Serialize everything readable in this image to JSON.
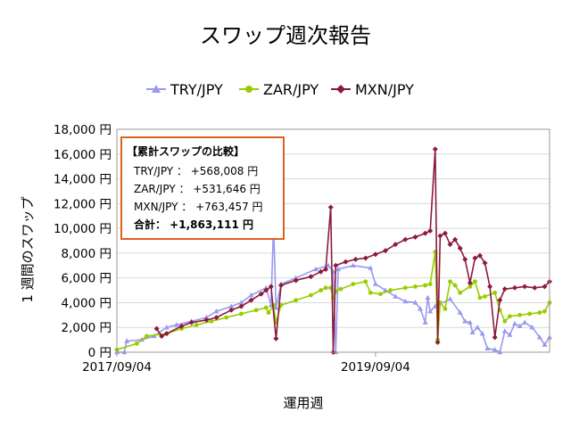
{
  "chart_data": {
    "type": "line",
    "title": "スワップ週次報告",
    "xlabel": "運用週",
    "ylabel": "1 週間のスワップ",
    "ylim": [
      0,
      18000
    ],
    "yticks": [
      0,
      2000,
      4000,
      6000,
      8000,
      10000,
      12000,
      14000,
      16000,
      18000
    ],
    "ytick_labels": [
      "0 円",
      "2,000 円",
      "4,000 円",
      "6,000 円",
      "8,000 円",
      "10,000 円",
      "12,000 円",
      "14,000 円",
      "16,000 円",
      "18,000 円"
    ],
    "x_weeks": [
      0,
      174
    ],
    "xtick_weeks": [
      0,
      104
    ],
    "xtick_labels": [
      "2017/09/04",
      "2019/09/04"
    ],
    "grid": "horizontal",
    "legend": "top",
    "series": [
      {
        "name": "TRY/JPY",
        "color": "#9999ee",
        "marker": "triangle",
        "points": [
          [
            0,
            0
          ],
          [
            3,
            0
          ],
          [
            4,
            900
          ],
          [
            10,
            1000
          ],
          [
            15,
            1300
          ],
          [
            20,
            2000
          ],
          [
            24,
            2200
          ],
          [
            30,
            2500
          ],
          [
            36,
            2800
          ],
          [
            40,
            3300
          ],
          [
            46,
            3700
          ],
          [
            50,
            4000
          ],
          [
            54,
            4600
          ],
          [
            60,
            5200
          ],
          [
            62,
            3800
          ],
          [
            63,
            10300
          ],
          [
            64,
            3600
          ],
          [
            66,
            5500
          ],
          [
            72,
            6000
          ],
          [
            80,
            6700
          ],
          [
            85,
            7000
          ],
          [
            87,
            6500
          ],
          [
            88,
            0
          ],
          [
            89,
            6700
          ],
          [
            95,
            7000
          ],
          [
            102,
            6800
          ],
          [
            104,
            5500
          ],
          [
            108,
            5000
          ],
          [
            112,
            4500
          ],
          [
            116,
            4100
          ],
          [
            120,
            4000
          ],
          [
            122,
            3500
          ],
          [
            124,
            2400
          ],
          [
            125,
            4400
          ],
          [
            126,
            3300
          ],
          [
            128,
            3700
          ],
          [
            134,
            4300
          ],
          [
            138,
            3200
          ],
          [
            140,
            2500
          ],
          [
            142,
            2400
          ],
          [
            143,
            1600
          ],
          [
            145,
            2000
          ],
          [
            147,
            1500
          ],
          [
            149,
            300
          ],
          [
            152,
            200
          ],
          [
            154,
            0
          ],
          [
            156,
            1700
          ],
          [
            158,
            1400
          ],
          [
            160,
            2300
          ],
          [
            162,
            2100
          ],
          [
            164,
            2400
          ],
          [
            167,
            2000
          ],
          [
            170,
            1200
          ],
          [
            172,
            600
          ],
          [
            174,
            1200
          ]
        ]
      },
      {
        "name": "ZAR/JPY",
        "color": "#99cc00",
        "marker": "circle",
        "points": [
          [
            0,
            200
          ],
          [
            8,
            700
          ],
          [
            12,
            1300
          ],
          [
            20,
            1500
          ],
          [
            26,
            1900
          ],
          [
            32,
            2200
          ],
          [
            38,
            2500
          ],
          [
            44,
            2800
          ],
          [
            50,
            3100
          ],
          [
            56,
            3400
          ],
          [
            60,
            3600
          ],
          [
            61,
            3200
          ],
          [
            63,
            3800
          ],
          [
            64,
            2400
          ],
          [
            66,
            3800
          ],
          [
            72,
            4200
          ],
          [
            78,
            4600
          ],
          [
            82,
            5000
          ],
          [
            84,
            5200
          ],
          [
            86,
            5200
          ],
          [
            87,
            4400
          ],
          [
            88,
            4900
          ],
          [
            90,
            5100
          ],
          [
            95,
            5500
          ],
          [
            100,
            5700
          ],
          [
            102,
            4800
          ],
          [
            106,
            4700
          ],
          [
            110,
            5000
          ],
          [
            116,
            5200
          ],
          [
            120,
            5300
          ],
          [
            124,
            5400
          ],
          [
            126,
            5500
          ],
          [
            128,
            8100
          ],
          [
            129,
            1000
          ],
          [
            130,
            4000
          ],
          [
            132,
            3500
          ],
          [
            134,
            5700
          ],
          [
            136,
            5400
          ],
          [
            138,
            4800
          ],
          [
            142,
            5300
          ],
          [
            144,
            5700
          ],
          [
            146,
            4400
          ],
          [
            148,
            4500
          ],
          [
            152,
            4800
          ],
          [
            154,
            3400
          ],
          [
            156,
            2500
          ],
          [
            158,
            2900
          ],
          [
            162,
            3000
          ],
          [
            166,
            3100
          ],
          [
            170,
            3200
          ],
          [
            172,
            3300
          ],
          [
            174,
            4000
          ]
        ]
      },
      {
        "name": "MXN/JPY",
        "color": "#8b1a3c",
        "marker": "diamond",
        "points": [
          [
            16,
            1900
          ],
          [
            18,
            1300
          ],
          [
            20,
            1500
          ],
          [
            26,
            2100
          ],
          [
            30,
            2400
          ],
          [
            36,
            2600
          ],
          [
            40,
            2800
          ],
          [
            46,
            3400
          ],
          [
            50,
            3700
          ],
          [
            54,
            4200
          ],
          [
            58,
            4700
          ],
          [
            60,
            5000
          ],
          [
            62,
            5300
          ],
          [
            64,
            1100
          ],
          [
            66,
            5400
          ],
          [
            72,
            5800
          ],
          [
            78,
            6100
          ],
          [
            82,
            6500
          ],
          [
            84,
            6700
          ],
          [
            86,
            11700
          ],
          [
            87,
            0
          ],
          [
            88,
            7000
          ],
          [
            92,
            7300
          ],
          [
            96,
            7500
          ],
          [
            100,
            7600
          ],
          [
            104,
            7900
          ],
          [
            108,
            8200
          ],
          [
            112,
            8700
          ],
          [
            116,
            9100
          ],
          [
            120,
            9300
          ],
          [
            124,
            9600
          ],
          [
            126,
            9800
          ],
          [
            128,
            16400
          ],
          [
            129,
            800
          ],
          [
            130,
            9400
          ],
          [
            132,
            9600
          ],
          [
            134,
            8700
          ],
          [
            136,
            9100
          ],
          [
            138,
            8400
          ],
          [
            140,
            7500
          ],
          [
            142,
            5600
          ],
          [
            144,
            7600
          ],
          [
            146,
            7800
          ],
          [
            148,
            7200
          ],
          [
            150,
            5300
          ],
          [
            152,
            1200
          ],
          [
            154,
            4200
          ],
          [
            156,
            5100
          ],
          [
            160,
            5200
          ],
          [
            164,
            5300
          ],
          [
            168,
            5200
          ],
          [
            172,
            5300
          ],
          [
            174,
            5700
          ]
        ]
      }
    ],
    "annotation": {
      "heading": "【累計スワップの比較】",
      "lines": [
        "TRY/JPY ： +568,008 円",
        "ZAR/JPY ： +531,646 円",
        "MXN/JPY ： +763,457 円"
      ],
      "total": "合計： +1,863,111 円",
      "border_color": "#e06020"
    }
  }
}
